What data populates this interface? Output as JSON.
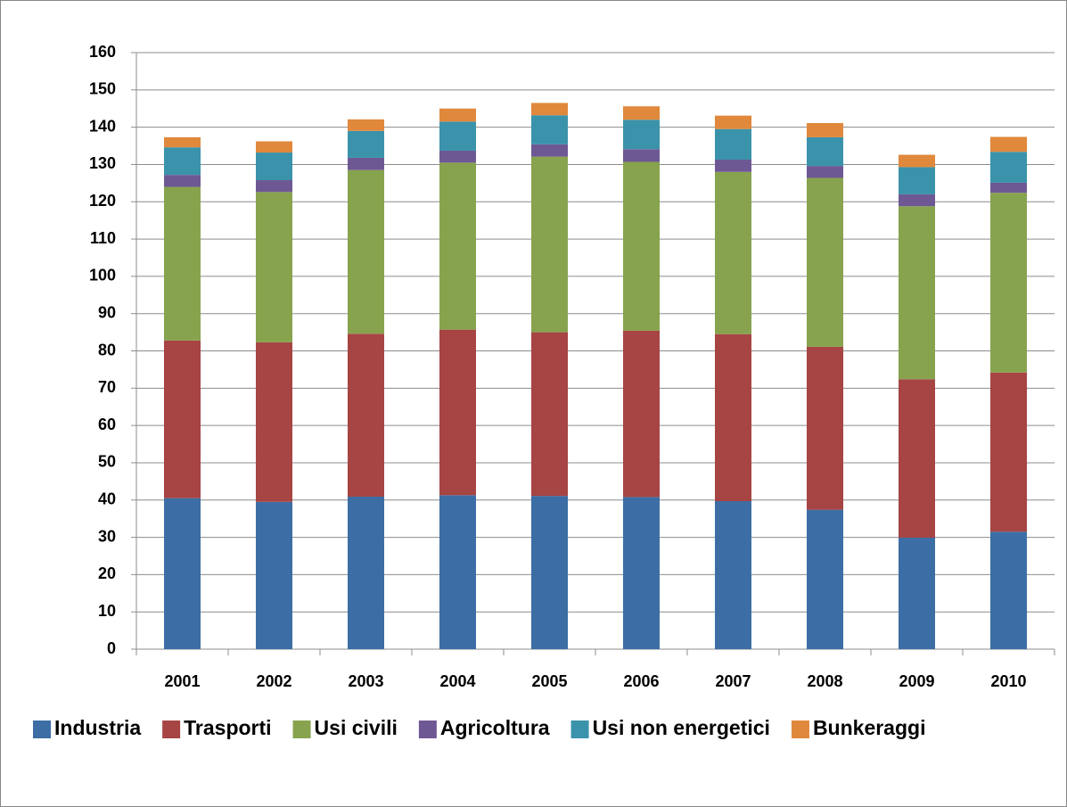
{
  "chart_data": {
    "type": "stacked_bar",
    "categories": [
      "2001",
      "2002",
      "2003",
      "2004",
      "2005",
      "2006",
      "2007",
      "2008",
      "2009",
      "2010"
    ],
    "series": [
      {
        "name": "Industria",
        "color": "#3c6ea5",
        "values": [
          40.5,
          39.5,
          40.9,
          41.3,
          41.1,
          40.8,
          39.7,
          37.4,
          29.9,
          31.5
        ]
      },
      {
        "name": "Trasporti",
        "color": "#a74444",
        "values": [
          42.3,
          42.8,
          43.7,
          44.4,
          43.9,
          44.6,
          44.8,
          43.7,
          42.5,
          42.7
        ]
      },
      {
        "name": "Usi civili",
        "color": "#87a34e",
        "values": [
          41.2,
          40.3,
          43.9,
          44.8,
          47.1,
          45.3,
          43.5,
          45.3,
          46.4,
          48.2
        ]
      },
      {
        "name": "Agricoltura",
        "color": "#6e5894",
        "values": [
          3.2,
          3.2,
          3.3,
          3.2,
          3.3,
          3.4,
          3.3,
          3.2,
          3.2,
          2.7
        ]
      },
      {
        "name": "Usi non energetici",
        "color": "#3a93ab",
        "values": [
          7.4,
          7.4,
          7.2,
          7.8,
          7.8,
          7.9,
          8.2,
          7.7,
          7.3,
          8.3
        ]
      },
      {
        "name": "Bunkeraggi",
        "color": "#e0883c",
        "values": [
          2.7,
          3.0,
          3.1,
          3.5,
          3.3,
          3.6,
          3.6,
          3.8,
          3.3,
          4.0
        ]
      }
    ],
    "ylim": [
      0,
      160
    ],
    "yticks": [
      0,
      10,
      20,
      30,
      40,
      50,
      60,
      70,
      80,
      90,
      100,
      110,
      120,
      130,
      140,
      150,
      160
    ],
    "grid": true,
    "legend": "bottom"
  }
}
